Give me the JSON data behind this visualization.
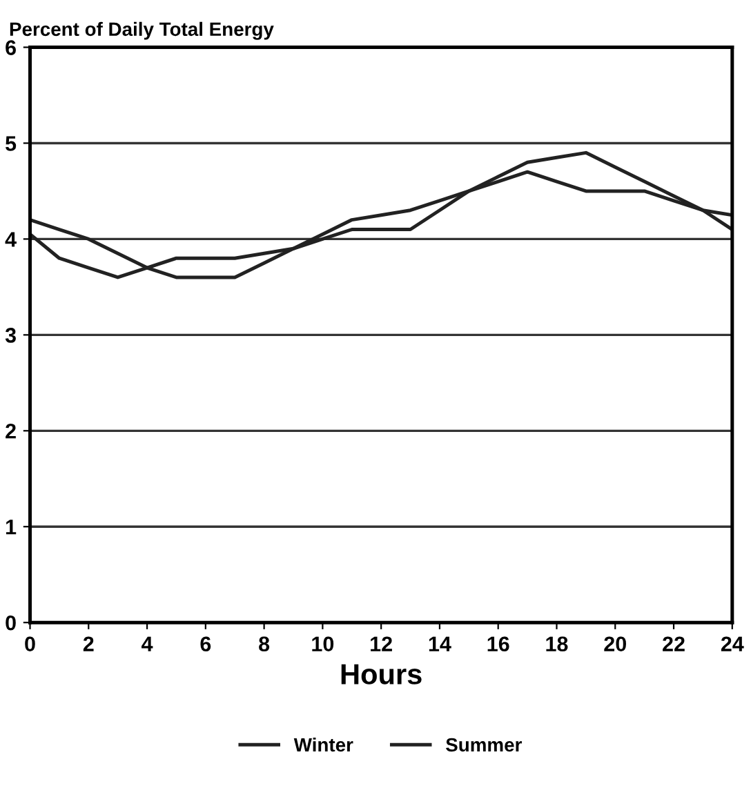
{
  "chart_data": {
    "type": "line",
    "title": "Percent of Daily Total Energy",
    "xlabel": "Hours",
    "x": [
      0,
      1,
      2,
      3,
      4,
      5,
      6,
      7,
      8,
      9,
      10,
      11,
      12,
      13,
      14,
      15,
      16,
      17,
      18,
      19,
      20,
      21,
      22,
      23,
      24
    ],
    "series": [
      {
        "name": "Winter",
        "color": "#222222",
        "values": [
          4.2,
          4.1,
          4.0,
          3.85,
          3.7,
          3.6,
          3.6,
          3.6,
          3.75,
          3.9,
          4.05,
          4.2,
          4.25,
          4.3,
          4.4,
          4.5,
          4.6,
          4.7,
          4.6,
          4.5,
          4.5,
          4.5,
          4.4,
          4.3,
          4.25
        ]
      },
      {
        "name": "Summer",
        "color": "#222222",
        "values": [
          4.05,
          3.8,
          3.7,
          3.6,
          3.7,
          3.8,
          3.8,
          3.8,
          3.85,
          3.9,
          4.0,
          4.1,
          4.1,
          4.1,
          4.3,
          4.5,
          4.65,
          4.8,
          4.85,
          4.9,
          4.75,
          4.6,
          4.45,
          4.3,
          4.1
        ]
      }
    ],
    "xlim": [
      0,
      24
    ],
    "xticks": [
      0,
      2,
      4,
      6,
      8,
      10,
      12,
      14,
      16,
      18,
      20,
      22,
      24
    ],
    "ylim": [
      0,
      6
    ],
    "yticks": [
      0,
      1,
      2,
      3,
      4,
      5,
      6
    ],
    "grid": "y",
    "legend": "bottom",
    "marker": "none",
    "line_style": "solid"
  }
}
